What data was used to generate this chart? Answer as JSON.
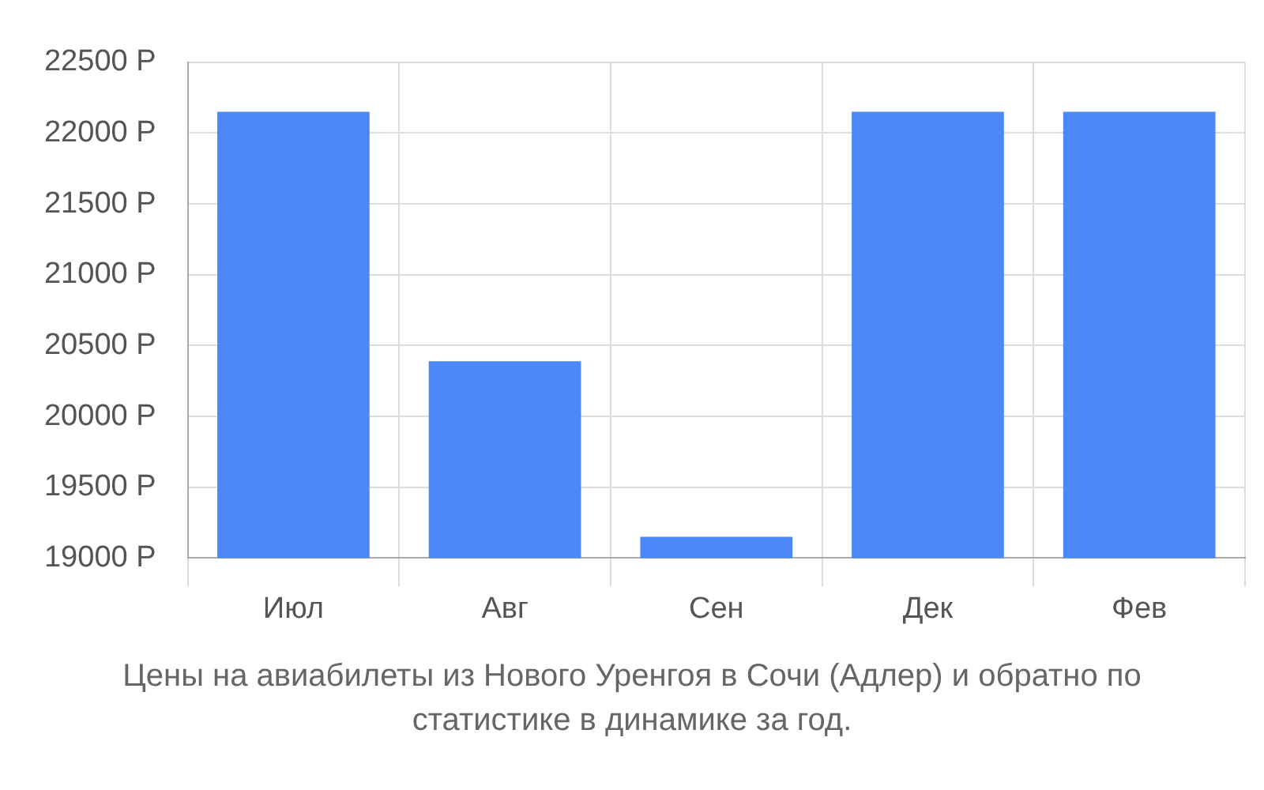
{
  "chart_data": {
    "type": "bar",
    "categories": [
      "Июл",
      "Авг",
      "Сен",
      "Дек",
      "Фев"
    ],
    "values": [
      22150,
      20390,
      19150,
      22150,
      22150
    ],
    "color": "#4b89f8",
    "ylim": [
      19000,
      22500
    ],
    "yticks": [
      {
        "value": 19000,
        "label": "19000 Р"
      },
      {
        "value": 19500,
        "label": "19500 Р"
      },
      {
        "value": 20000,
        "label": "20000 Р"
      },
      {
        "value": 20500,
        "label": "20500 Р"
      },
      {
        "value": 21000,
        "label": "21000 Р"
      },
      {
        "value": 21500,
        "label": "21500 Р"
      },
      {
        "value": 22000,
        "label": "22000 Р"
      },
      {
        "value": 22500,
        "label": "22500 Р"
      }
    ],
    "grid": true,
    "annotations": [
      "Цены на авиабилеты из Нового Уренгоя в Сочи (Адлер) и обратно по статистике в динамике за год."
    ]
  }
}
